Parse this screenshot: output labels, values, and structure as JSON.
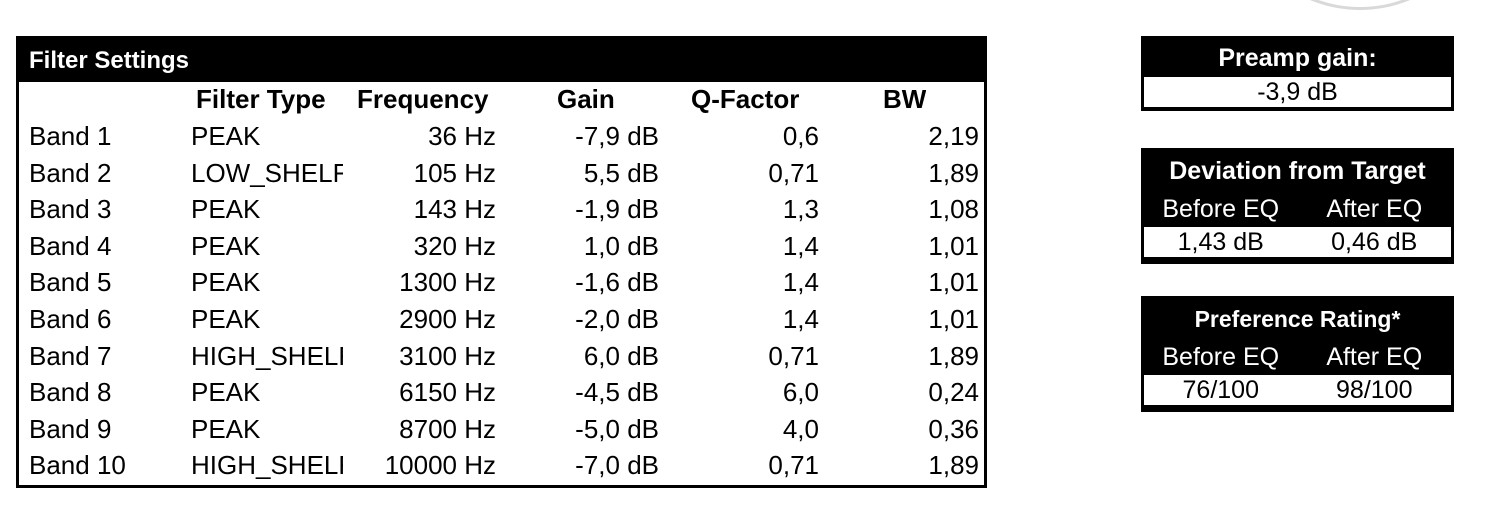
{
  "filter_settings": {
    "title": "Filter Settings",
    "headers": {
      "filter_type": "Filter Type",
      "frequency": "Frequency",
      "gain": "Gain",
      "q_factor": "Q-Factor",
      "bw": "BW"
    },
    "rows": [
      {
        "band": "Band 1",
        "type": "PEAK",
        "freq": "36 Hz",
        "gain": "-7,9 dB",
        "q": "0,6",
        "bw": "2,19"
      },
      {
        "band": "Band 2",
        "type": "LOW_SHELF",
        "freq": "105 Hz",
        "gain": "5,5 dB",
        "q": "0,71",
        "bw": "1,89"
      },
      {
        "band": "Band 3",
        "type": "PEAK",
        "freq": "143 Hz",
        "gain": "-1,9 dB",
        "q": "1,3",
        "bw": "1,08"
      },
      {
        "band": "Band 4",
        "type": "PEAK",
        "freq": "320 Hz",
        "gain": "1,0 dB",
        "q": "1,4",
        "bw": "1,01"
      },
      {
        "band": "Band 5",
        "type": "PEAK",
        "freq": "1300 Hz",
        "gain": "-1,6 dB",
        "q": "1,4",
        "bw": "1,01"
      },
      {
        "band": "Band 6",
        "type": "PEAK",
        "freq": "2900 Hz",
        "gain": "-2,0 dB",
        "q": "1,4",
        "bw": "1,01"
      },
      {
        "band": "Band 7",
        "type": "HIGH_SHELF",
        "freq": "3100 Hz",
        "gain": "6,0 dB",
        "q": "0,71",
        "bw": "1,89"
      },
      {
        "band": "Band 8",
        "type": "PEAK",
        "freq": "6150 Hz",
        "gain": "-4,5 dB",
        "q": "6,0",
        "bw": "0,24"
      },
      {
        "band": "Band 9",
        "type": "PEAK",
        "freq": "8700 Hz",
        "gain": "-5,0 dB",
        "q": "4,0",
        "bw": "0,36"
      },
      {
        "band": "Band 10",
        "type": "HIGH_SHELF",
        "freq": "10000 Hz",
        "gain": "-7,0 dB",
        "q": "0,71",
        "bw": "1,89"
      }
    ]
  },
  "preamp": {
    "title": "Preamp gain:",
    "value": "-3,9 dB"
  },
  "deviation": {
    "title": "Deviation from Target",
    "before_label": "Before EQ",
    "after_label": "After EQ",
    "before_value": "1,43 dB",
    "after_value": "0,46 dB"
  },
  "preference": {
    "title": "Preference Rating*",
    "before_label": "Before EQ",
    "after_label": "After EQ",
    "before_value": "76/100",
    "after_value": "98/100"
  }
}
